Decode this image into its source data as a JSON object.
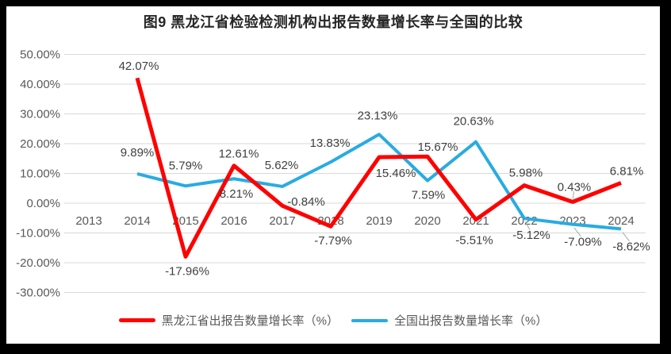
{
  "page": {
    "title": "图9 黑龙江省检验检测机构出报告数量增长率与全国的比较"
  },
  "chart_data": {
    "type": "line",
    "title": "图9 黑龙江省检验检测机构出报告数量增长率与全国的比较",
    "categories": [
      "2013",
      "2014",
      "2015",
      "2016",
      "2017",
      "2018",
      "2019",
      "2020",
      "2021",
      "2022",
      "2023",
      "2024"
    ],
    "series": [
      {
        "name": "黑龙江省出报告数量增长率（%）",
        "color": "#FF0000",
        "stroke_width": 5,
        "values": [
          null,
          42.07,
          -17.96,
          12.61,
          -0.84,
          -7.79,
          15.46,
          15.67,
          -5.51,
          5.98,
          0.43,
          6.81
        ],
        "labels": [
          "",
          "42.07%",
          "-17.96%",
          "12.61%",
          "-0.84%",
          "-7.79%",
          "15.46%",
          "15.67%",
          "-5.51%",
          "5.98%",
          "0.43%",
          "6.81%"
        ],
        "label_offsets": [
          [
            0,
            0
          ],
          [
            2,
            -15
          ],
          [
            2,
            18
          ],
          [
            6,
            -15
          ],
          [
            30,
            -5
          ],
          [
            3,
            18
          ],
          [
            21,
            20
          ],
          [
            13,
            -12
          ],
          [
            -2,
            26
          ],
          [
            2,
            -16
          ],
          [
            2,
            -19
          ],
          [
            7,
            -15
          ]
        ],
        "label_leaders": [
          false,
          false,
          false,
          false,
          false,
          false,
          false,
          false,
          false,
          false,
          true,
          false
        ]
      },
      {
        "name": "全国出报告数量增长率（%）",
        "color": "#29ABE2",
        "stroke_width": 4,
        "values": [
          null,
          9.89,
          5.79,
          8.21,
          5.62,
          13.83,
          23.13,
          7.59,
          20.63,
          -5.12,
          -7.09,
          -8.62
        ],
        "labels": [
          "",
          "9.89%",
          "5.79%",
          "8.21%",
          "5.62%",
          "13.83%",
          "23.13%",
          "7.59%",
          "20.63%",
          "-5.12%",
          "-7.09%",
          "-8.62%"
        ],
        "label_offsets": [
          [
            0,
            0
          ],
          [
            0,
            -27
          ],
          [
            0,
            -26
          ],
          [
            3,
            19
          ],
          [
            -1,
            -27
          ],
          [
            -1,
            -24
          ],
          [
            -2,
            -24
          ],
          [
            1,
            18
          ],
          [
            -3,
            -26
          ],
          [
            9,
            21
          ],
          [
            13,
            22
          ],
          [
            13,
            22
          ]
        ],
        "label_leaders": [
          false,
          false,
          false,
          false,
          false,
          false,
          false,
          false,
          false,
          true,
          true,
          true
        ]
      }
    ],
    "ylim": [
      -30,
      50
    ],
    "ytick_step": 10,
    "ytick_labels": [
      "50.00%",
      "40.00%",
      "30.00%",
      "20.00%",
      "10.00%",
      "0.00%",
      "-10.00%",
      "-20.00%",
      "-30.00%"
    ],
    "grid": "horizontal",
    "legend_position": "bottom"
  },
  "colors": {
    "grid": "#D9D9D9",
    "axis_text": "#595959",
    "data_label": "#404040",
    "leader": "#A6A6A6",
    "frame": "#000000",
    "panel_background": "#FFFFFF"
  }
}
